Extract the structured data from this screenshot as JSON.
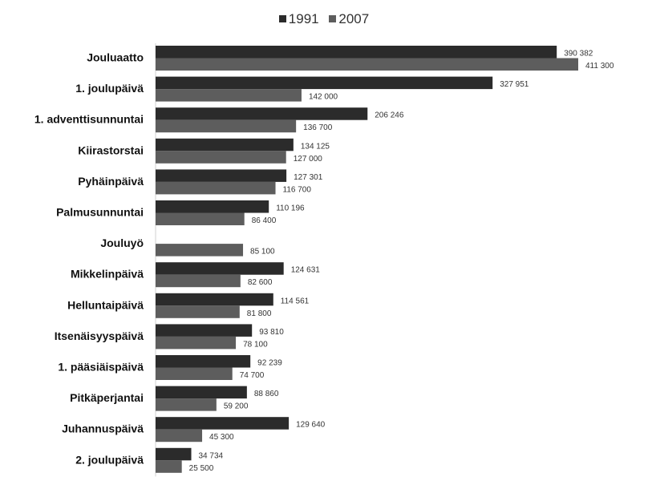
{
  "chart_data": {
    "type": "bar",
    "orientation": "horizontal",
    "title": "",
    "xlabel": "",
    "ylabel": "",
    "xlim": [
      0,
      420000
    ],
    "grid": false,
    "legend_position": "top-center",
    "categories": [
      "Jouluaatto",
      "1. joulupäivä",
      "1. adventtisunnuntai",
      "Kiirastorstai",
      "Pyhäinpäivä",
      "Palmusunnuntai",
      "Jouluyö",
      "Mikkelinpäivä",
      "Helluntaipäivä",
      "Itsenäisyyspäivä",
      "1. pääsiäispäivä",
      "Pitkäperjantai",
      "Juhannuspäivä",
      "2. joulupäivä"
    ],
    "series": [
      {
        "name": "1991",
        "color": "#2b2b2b",
        "values": [
          390382,
          327951,
          206246,
          134125,
          127301,
          110196,
          null,
          124631,
          114561,
          93810,
          92239,
          88860,
          129640,
          34734
        ],
        "labels": [
          "390 382",
          "327 951",
          "206 246",
          "134 125",
          "127 301",
          "110 196",
          "",
          "124 631",
          "114 561",
          "93 810",
          "92 239",
          "88 860",
          "129 640",
          "34 734"
        ]
      },
      {
        "name": "2007",
        "color": "#5d5d5d",
        "values": [
          411300,
          142000,
          136700,
          127000,
          116700,
          86400,
          85100,
          82600,
          81800,
          78100,
          74700,
          59200,
          45300,
          25500
        ],
        "labels": [
          "411 300",
          "142 000",
          "136 700",
          "127 000",
          "116 700",
          "86 400",
          "85 100",
          "82 600",
          "81 800",
          "78 100",
          "74 700",
          "59 200",
          "45 300",
          "25 500"
        ]
      }
    ]
  }
}
